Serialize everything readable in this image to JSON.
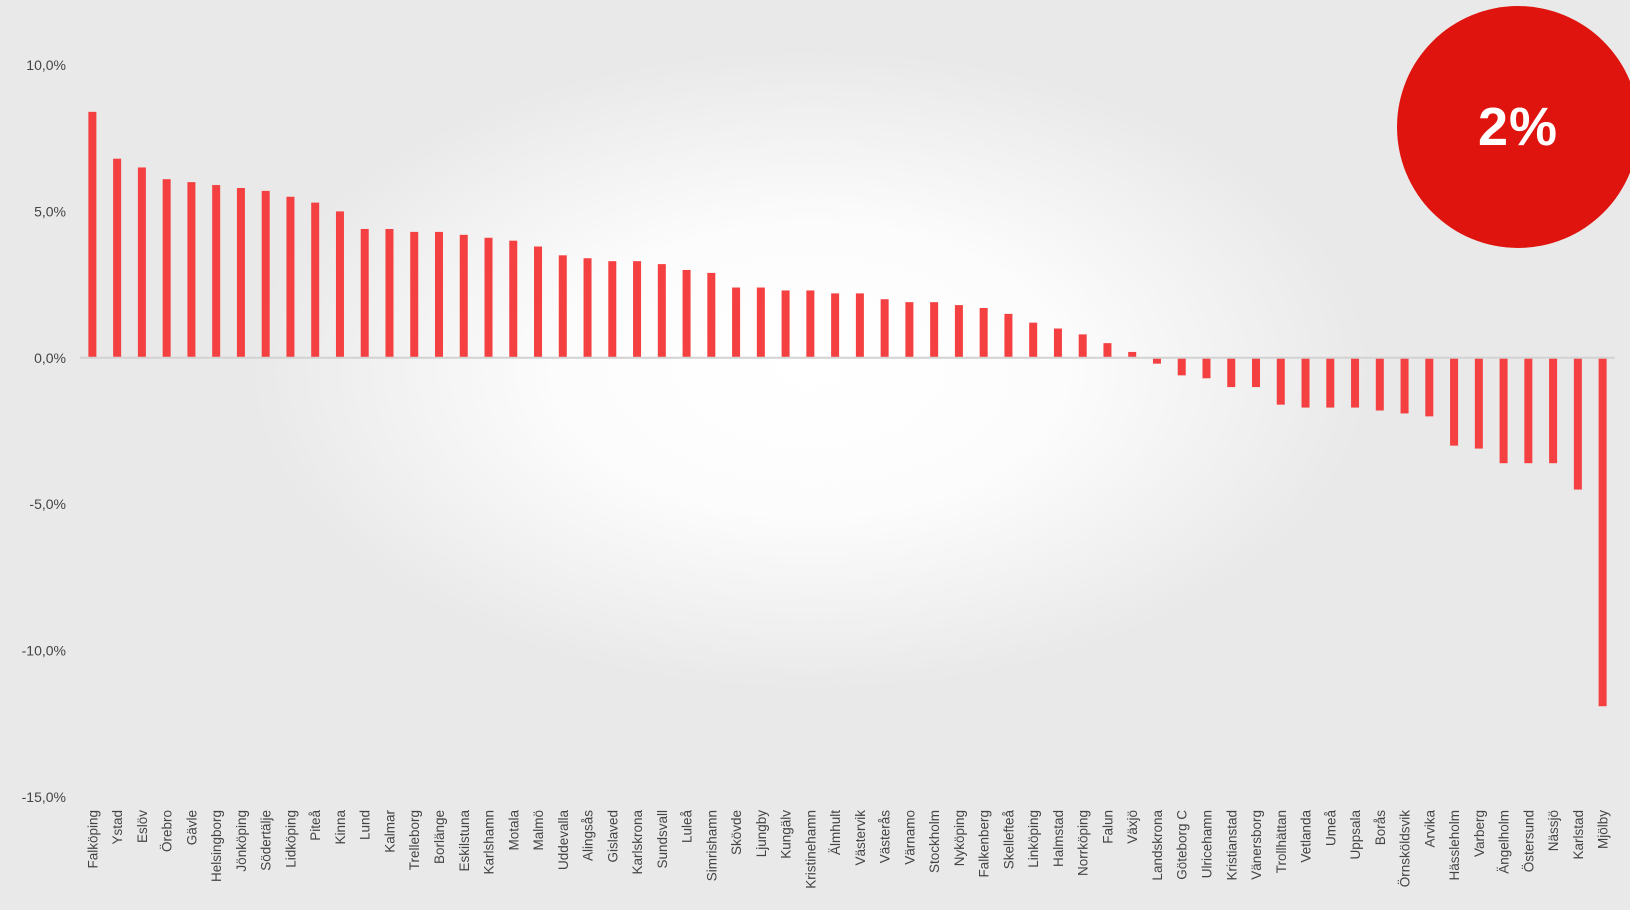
{
  "badge": {
    "text": "2%",
    "color": "#e0140e"
  },
  "chart_data": {
    "type": "bar",
    "title": "",
    "xlabel": "",
    "ylabel": "",
    "ylim": [
      -15,
      10
    ],
    "yticks": [
      10,
      5,
      0,
      -5,
      -10,
      -15
    ],
    "ytick_labels": [
      "10,0%",
      "5,0%",
      "0,0%",
      "-5,0%",
      "-10,0%",
      "-15,0%"
    ],
    "grid": false,
    "legend": "none",
    "bar_color": "#f44040",
    "categories": [
      "Falköping",
      "Ystad",
      "Eslöv",
      "Örebro",
      "Gävle",
      "Helsingborg",
      "Jönköping",
      "Södertälje",
      "Lidköping",
      "Piteå",
      "Kinna",
      "Lund",
      "Kalmar",
      "Trelleborg",
      "Borlänge",
      "Eskilstuna",
      "Karlshamn",
      "Motala",
      "Malmö",
      "Uddevalla",
      "Alingsås",
      "Gislaved",
      "Karlskrona",
      "Sundsvall",
      "Luleå",
      "Simrishamn",
      "Skövde",
      "Ljungby",
      "Kungälv",
      "Kristinehamn",
      "Älmhult",
      "Västervik",
      "Västerås",
      "Värnamo",
      "Stockholm",
      "Nyköping",
      "Falkenberg",
      "Skellefteå",
      "Linköping",
      "Halmstad",
      "Norrköping",
      "Falun",
      "Växjö",
      "Landskrona",
      "Göteborg C",
      "Ulricehamn",
      "Kristianstad",
      "Vänersborg",
      "Trollhättan",
      "Vetlanda",
      "Umeå",
      "Uppsala",
      "Borås",
      "Örnsköldsvik",
      "Arvika",
      "Hässleholm",
      "Varberg",
      "Ängelholm",
      "Östersund",
      "Nässjö",
      "Karlstad",
      "Mjölby"
    ],
    "values": [
      8.4,
      6.8,
      6.5,
      6.1,
      6.0,
      5.9,
      5.8,
      5.7,
      5.5,
      5.3,
      5.0,
      4.4,
      4.4,
      4.3,
      4.3,
      4.2,
      4.1,
      4.0,
      3.8,
      3.5,
      3.4,
      3.3,
      3.3,
      3.2,
      3.0,
      2.9,
      2.4,
      2.4,
      2.3,
      2.3,
      2.2,
      2.2,
      2.0,
      1.9,
      1.9,
      1.8,
      1.7,
      1.5,
      1.2,
      1.0,
      0.8,
      0.5,
      0.2,
      -0.2,
      -0.6,
      -0.7,
      -1.0,
      -1.0,
      -1.6,
      -1.7,
      -1.7,
      -1.7,
      -1.8,
      -1.9,
      -2.0,
      -3.0,
      -3.1,
      -3.6,
      -3.6,
      -3.6,
      -4.5,
      -11.9
    ]
  }
}
